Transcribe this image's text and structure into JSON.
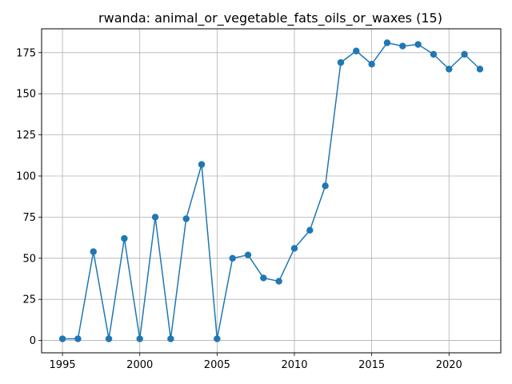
{
  "chart_data": {
    "type": "line",
    "title": "rwanda: animal_or_vegetable_fats_oils_or_waxes (15)",
    "xlabel": "",
    "ylabel": "",
    "x": [
      1995,
      1996,
      1997,
      1998,
      1999,
      2000,
      2001,
      2002,
      2003,
      2004,
      2005,
      2006,
      2007,
      2008,
      2009,
      2010,
      2011,
      2012,
      2013,
      2014,
      2015,
      2016,
      2017,
      2018,
      2019,
      2020,
      2021,
      2022
    ],
    "series": [
      {
        "values": [
          1,
          1,
          54,
          1,
          62,
          1,
          75,
          1,
          74,
          107,
          1,
          50,
          52,
          38,
          36,
          56,
          67,
          94,
          169,
          176,
          168,
          181,
          179,
          180,
          174,
          165,
          174,
          165
        ]
      }
    ],
    "xlim": [
      1993.65,
      2023.35
    ],
    "ylim": [
      -7.5,
      189.5
    ],
    "xticks": [
      1995,
      2000,
      2005,
      2010,
      2015,
      2020
    ],
    "yticks": [
      0,
      25,
      50,
      75,
      100,
      125,
      150,
      175
    ],
    "grid": true,
    "legend": "none",
    "colors": {
      "line": "#1f77b4",
      "grid": "#b0b0b0",
      "axes": "#000000"
    }
  }
}
